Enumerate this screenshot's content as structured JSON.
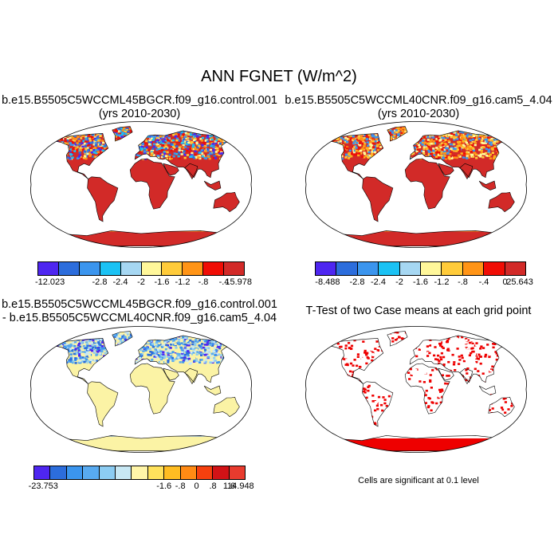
{
  "title": "ANN FGNET (W/m^2)",
  "panels": [
    {
      "title_line1": "b.e15.B5505C5WCCML45BGCR.f09_g16.control.001",
      "title_line2": "(yrs 2010-2030)"
    },
    {
      "title_line1": "b.e15.B5505C5WCCML40CNR.f09_g16.cam5_4.04",
      "title_line2": "(yrs 2010-2030)"
    },
    {
      "title_line1": "b.e15.B5505C5WCCML45BGCR.f09_g16.control.001",
      "title_line2": "- b.e15.B5505C5WCCML40CNR.f09_g16.cam5_4.04"
    },
    {
      "title_line1": "T-Test of two Case means at each grid point",
      "title_line2": ""
    }
  ],
  "colorbars": {
    "cb1": {
      "colors": [
        "#4e26f0",
        "#2c6ddc",
        "#3b95ee",
        "#1bc2f4",
        "#a6d7f2",
        "#fff79a",
        "#ffcb3a",
        "#ff9416",
        "#f00d05",
        "#d22a28"
      ],
      "labels": [
        "-12.023",
        "-2.8",
        "-2.4",
        "-2",
        "-1.6",
        "-1.2",
        "-.8",
        "-.4",
        "15.978"
      ]
    },
    "cb2": {
      "colors": [
        "#4e26f0",
        "#2c6ddc",
        "#3b95ee",
        "#1bc2f4",
        "#a6d7f2",
        "#fff79a",
        "#ffcb3a",
        "#ff9416",
        "#f00d05",
        "#d22a28"
      ],
      "labels": [
        "-8.488",
        "-2.8",
        "-2.4",
        "-2",
        "-1.6",
        "-1.2",
        "-.8",
        "-.4",
        "0",
        "25.643"
      ]
    },
    "cb3": {
      "colors": [
        "#4e26f0",
        "#2c6ddc",
        "#3b95ee",
        "#58aaf0",
        "#8cccf2",
        "#c8e8f4",
        "#fff5a8",
        "#ffe25c",
        "#ffbd22",
        "#ff8a14",
        "#f5400e",
        "#d21216",
        "#e83b2e"
      ],
      "labels": [
        "-23.753",
        "-1.6",
        "-.8",
        "0",
        ".8",
        "1.6",
        "14.948"
      ]
    }
  },
  "note": "Cells are significant at 0.1 level",
  "colors": {
    "hot": "#d22a28",
    "warm": "#ffb21e",
    "cool": "#4a8ee8",
    "diff_pos": "#fbf3a5",
    "sig": "#ee0000"
  }
}
